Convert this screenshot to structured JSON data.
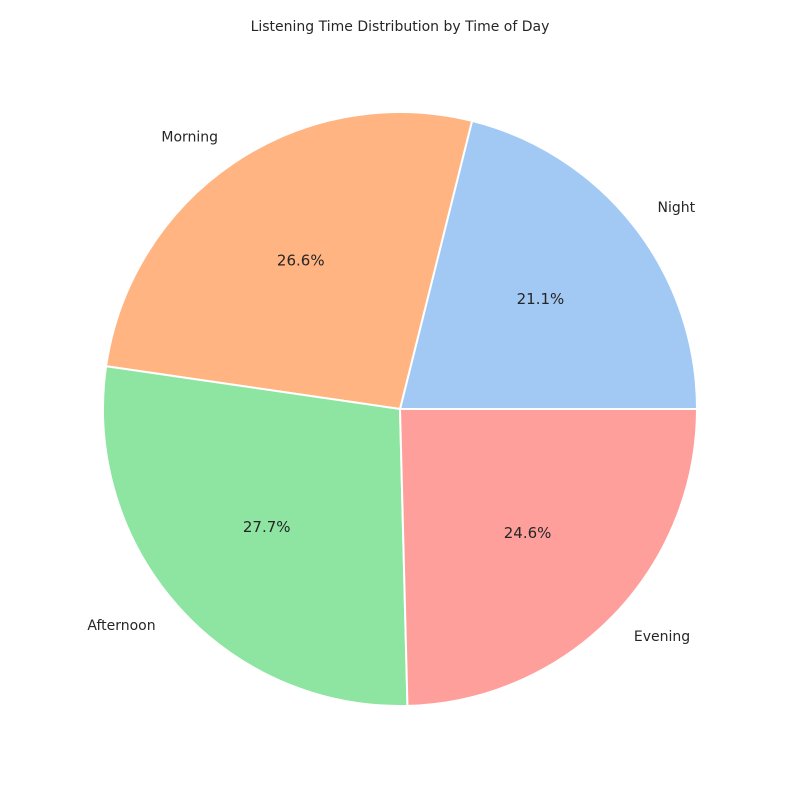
{
  "chart_data": {
    "type": "pie",
    "title": "Listening Time Distribution by Time of Day",
    "start_angle": 0,
    "direction": "counterclockwise",
    "slices": [
      {
        "label": "Night",
        "value": 21.1,
        "pct_label": "21.1%",
        "color": "#a1c9f4"
      },
      {
        "label": "Morning",
        "value": 26.6,
        "pct_label": "26.6%",
        "color": "#ffb482"
      },
      {
        "label": "Afternoon",
        "value": 27.7,
        "pct_label": "27.7%",
        "color": "#8de5a1"
      },
      {
        "label": "Evening",
        "value": 24.6,
        "pct_label": "24.6%",
        "color": "#ff9f9b"
      }
    ],
    "edge_color": "#ffffff"
  }
}
